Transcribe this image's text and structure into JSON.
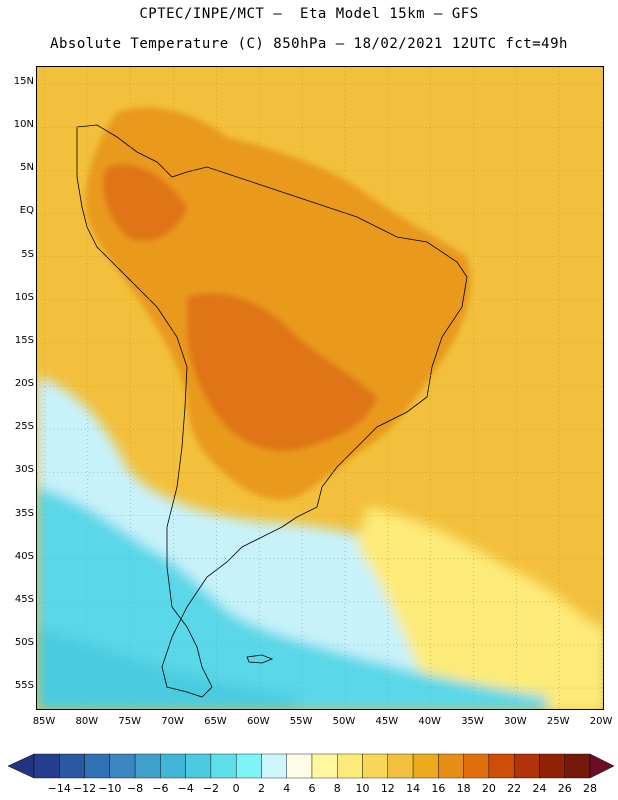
{
  "title_line1": "CPTEC/INPE/MCT –  Eta Model 15km – GFS",
  "title_line2": "Absolute Temperature (C) 850hPa – 18/02/2021 12UTC fct=49h",
  "lat_labels": [
    "15N",
    "10N",
    "5N",
    "EQ",
    "5S",
    "10S",
    "15S",
    "20S",
    "25S",
    "30S",
    "35S",
    "40S",
    "45S",
    "50S",
    "55S"
  ],
  "lon_labels": [
    "85W",
    "80W",
    "75W",
    "70W",
    "65W",
    "60W",
    "55W",
    "50W",
    "45W",
    "40W",
    "35W",
    "30W",
    "25W",
    "20W"
  ],
  "colorbar": {
    "labels": [
      "-14",
      "-12",
      "-10",
      "-8",
      "-6",
      "-4",
      "-2",
      "0",
      "2",
      "4",
      "6",
      "8",
      "10",
      "12",
      "14",
      "16",
      "18",
      "20",
      "22",
      "24",
      "26",
      "28"
    ],
    "colors": [
      "#233f8e",
      "#2a58a3",
      "#3270b4",
      "#3b87c2",
      "#3fa0cc",
      "#41b6d6",
      "#4ccbe0",
      "#5fdfea",
      "#7df4f7",
      "#cdf5fc",
      "#fffbe6",
      "#fff79d",
      "#fdeb79",
      "#f8d657",
      "#f2bf3e",
      "#eeaa1e",
      "#e78e17",
      "#e06e0d",
      "#cf4e07",
      "#b03407",
      "#922206",
      "#751a0b"
    ],
    "left_end_color": "#22337f",
    "right_end_color": "#6b0d27"
  },
  "map": {
    "ocean_color": "#f2c03c",
    "warm_land_color": "#e99a1f",
    "hot_core_color": "#df7415",
    "cold_water_color": "#5ad7e8",
    "cool_water_color": "#c8f2fa"
  }
}
